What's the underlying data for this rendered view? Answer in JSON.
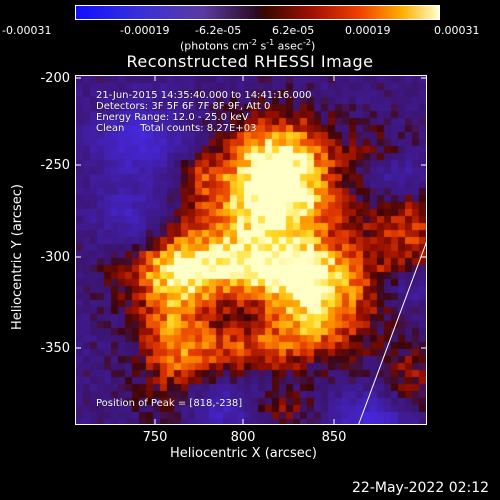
{
  "colorbar": {
    "ticks": [
      "-0.00031",
      "-0.00019",
      "-6.2e-05",
      "6.2e-05",
      "0.00019",
      "0.00031"
    ],
    "units_prefix": "(photons cm",
    "units_sup1": "-2",
    "units_mid1": " s",
    "units_sup2": "-1",
    "units_mid2": " asec",
    "units_sup3": "-2",
    "units_suffix": ")"
  },
  "plot": {
    "title": "Reconstructed RHESSI Image",
    "xlabel": "Heliocentric X (arcsec)",
    "ylabel": "Heliocentric Y (arcsec)",
    "xticks": [
      "750",
      "800",
      "850"
    ],
    "yticks": [
      "-200",
      "-250",
      "-300",
      "-350"
    ],
    "info_lines": [
      "21-Jun-2015 14:35:40.000 to 14:41:16.000",
      "Detectors: 3F 5F 6F 7F 8F 9F, Att 0",
      "Energy Range: 12.0 - 25.0 keV",
      "Clean     Total counts: 8.27E+03"
    ],
    "peak_label": "Position of Peak = [818,-238]"
  },
  "footer": {
    "date": "22-May-2022 02:12"
  }
}
